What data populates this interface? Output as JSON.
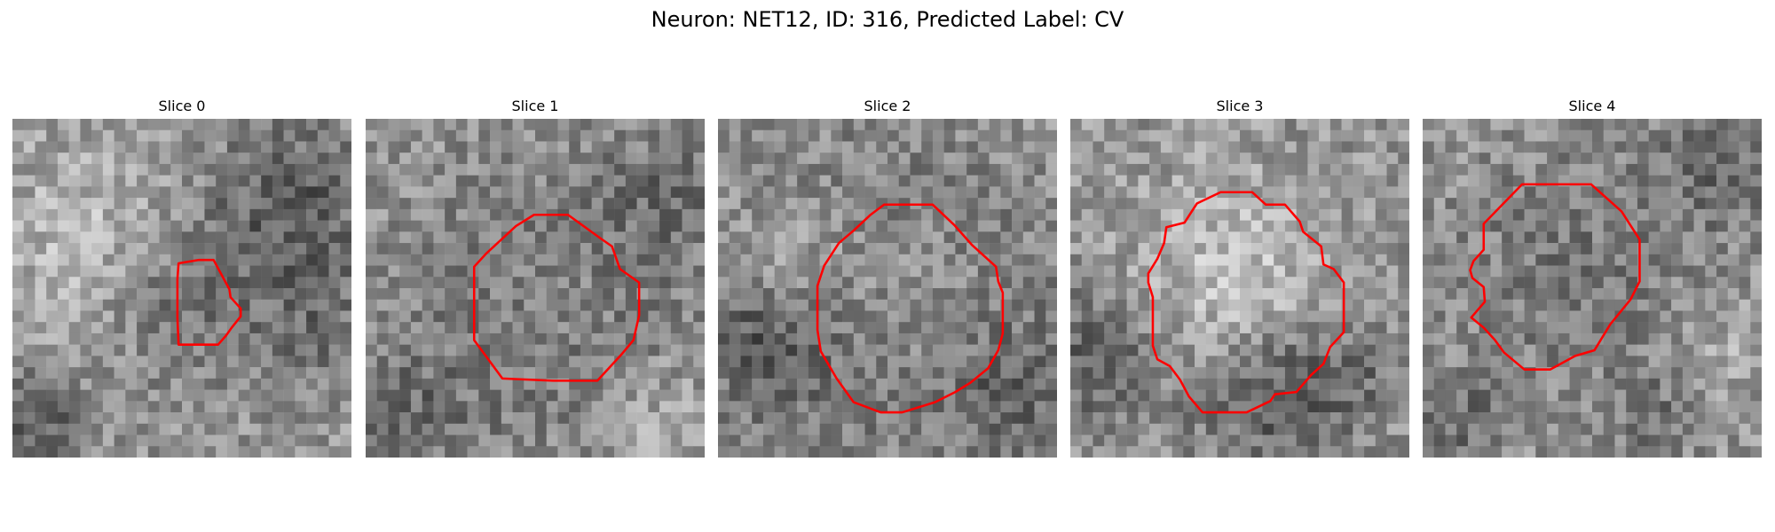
{
  "figure": {
    "title": "Neuron: NET12, ID: 316, Predicted Label: CV",
    "grid_size": 30,
    "contour_color": "#ff0000",
    "panels": [
      {
        "title": "Slice 0",
        "seed": 11,
        "blobs": [
          {
            "cx": 15,
            "cy": 16,
            "r": 5,
            "amp": -40
          },
          {
            "cx": 24,
            "cy": 7,
            "r": 5,
            "amp": -60
          },
          {
            "cx": 27,
            "cy": 18,
            "r": 4,
            "amp": -35
          },
          {
            "cx": 6,
            "cy": 10,
            "r": 6,
            "amp": 35
          },
          {
            "cx": 2,
            "cy": 26,
            "r": 3,
            "amp": -60
          }
        ],
        "contour": [
          [
            14.7,
            12.8
          ],
          [
            16.5,
            12.5
          ],
          [
            17.8,
            12.5
          ],
          [
            19.2,
            15.1
          ],
          [
            19.3,
            15.8
          ],
          [
            20.2,
            16.8
          ],
          [
            20.2,
            17.5
          ],
          [
            19.4,
            18.5
          ],
          [
            18.9,
            19.2
          ],
          [
            18.2,
            20.0
          ],
          [
            14.7,
            20.0
          ],
          [
            14.6,
            17.6
          ],
          [
            14.6,
            14.2
          ]
        ]
      },
      {
        "title": "Slice 1",
        "seed": 23,
        "blobs": [
          {
            "cx": 16,
            "cy": 16,
            "r": 9,
            "amp": -45
          },
          {
            "cx": 16,
            "cy": 15,
            "r": 5,
            "amp": 25
          },
          {
            "cx": 26,
            "cy": 6,
            "r": 4,
            "amp": -30
          },
          {
            "cx": 3,
            "cy": 26,
            "r": 4,
            "amp": -35
          },
          {
            "cx": 25,
            "cy": 26,
            "r": 4,
            "amp": 30
          }
        ],
        "contour": [
          [
            14.9,
            8.5
          ],
          [
            17.9,
            8.5
          ],
          [
            20.8,
            10.6
          ],
          [
            21.8,
            11.3
          ],
          [
            22.5,
            13.3
          ],
          [
            24.2,
            14.5
          ],
          [
            24.2,
            17.4
          ],
          [
            23.7,
            19.6
          ],
          [
            22.7,
            20.8
          ],
          [
            20.5,
            23.2
          ],
          [
            16.6,
            23.2
          ],
          [
            12.1,
            23.0
          ],
          [
            10.7,
            21.1
          ],
          [
            9.6,
            19.6
          ],
          [
            9.6,
            13.1
          ],
          [
            10.7,
            11.9
          ],
          [
            13.3,
            9.5
          ]
        ]
      },
      {
        "title": "Slice 2",
        "seed": 37,
        "blobs": [
          {
            "cx": 16,
            "cy": 16,
            "r": 10,
            "amp": -55
          },
          {
            "cx": 17,
            "cy": 15,
            "r": 6,
            "amp": 45
          },
          {
            "cx": 3,
            "cy": 19,
            "r": 4,
            "amp": -50
          },
          {
            "cx": 6,
            "cy": 13,
            "r": 4,
            "amp": 35
          },
          {
            "cx": 26,
            "cy": 24,
            "r": 4,
            "amp": -35
          }
        ],
        "contour": [
          [
            13.5,
            8.5
          ],
          [
            14.7,
            7.6
          ],
          [
            16.6,
            7.6
          ],
          [
            19.0,
            7.6
          ],
          [
            20.9,
            9.4
          ],
          [
            22.5,
            11.2
          ],
          [
            24.6,
            13.1
          ],
          [
            24.8,
            14.4
          ],
          [
            25.2,
            15.4
          ],
          [
            25.2,
            19.0
          ],
          [
            24.8,
            20.5
          ],
          [
            23.9,
            22.1
          ],
          [
            22.3,
            23.4
          ],
          [
            21.0,
            24.2
          ],
          [
            19.2,
            25.1
          ],
          [
            16.3,
            26.0
          ],
          [
            14.4,
            26.0
          ],
          [
            12.0,
            25.1
          ],
          [
            10.5,
            23.0
          ],
          [
            9.1,
            20.6
          ],
          [
            8.8,
            18.7
          ],
          [
            8.8,
            14.8
          ],
          [
            9.4,
            13.0
          ],
          [
            10.7,
            11.0
          ],
          [
            12.0,
            9.9
          ]
        ]
      },
      {
        "title": "Slice 3",
        "seed": 41,
        "blobs": [
          {
            "cx": 15,
            "cy": 16,
            "r": 9,
            "amp": -40
          },
          {
            "cx": 14,
            "cy": 14,
            "r": 7,
            "amp": 80
          },
          {
            "cx": 2,
            "cy": 21,
            "r": 4,
            "amp": -55
          },
          {
            "cx": 17,
            "cy": 24,
            "r": 4,
            "amp": -55
          },
          {
            "cx": 24,
            "cy": 22,
            "r": 3,
            "amp": -35
          }
        ],
        "contour": [
          [
            11.2,
            7.5
          ],
          [
            13.3,
            6.5
          ],
          [
            16.1,
            6.5
          ],
          [
            17.3,
            7.6
          ],
          [
            19.0,
            7.6
          ],
          [
            20.3,
            9.1
          ],
          [
            20.6,
            10.0
          ],
          [
            22.2,
            11.3
          ],
          [
            22.4,
            12.9
          ],
          [
            23.3,
            13.3
          ],
          [
            24.2,
            14.5
          ],
          [
            24.2,
            18.9
          ],
          [
            23.0,
            20.2
          ],
          [
            22.4,
            21.7
          ],
          [
            21.3,
            22.7
          ],
          [
            20.0,
            24.2
          ],
          [
            18.1,
            24.4
          ],
          [
            17.7,
            25.0
          ],
          [
            15.6,
            26.0
          ],
          [
            11.7,
            26.0
          ],
          [
            10.5,
            24.6
          ],
          [
            9.7,
            23.1
          ],
          [
            8.8,
            21.9
          ],
          [
            7.7,
            21.3
          ],
          [
            7.3,
            20.1
          ],
          [
            7.3,
            15.8
          ],
          [
            6.9,
            14.5
          ],
          [
            6.9,
            13.7
          ],
          [
            7.7,
            12.4
          ],
          [
            8.3,
            11.0
          ],
          [
            8.5,
            9.6
          ],
          [
            10.1,
            9.2
          ]
        ]
      },
      {
        "title": "Slice 4",
        "seed": 57,
        "blobs": [
          {
            "cx": 13,
            "cy": 13,
            "r": 8,
            "amp": -30
          },
          {
            "cx": 26,
            "cy": 4,
            "r": 4,
            "amp": -40
          },
          {
            "cx": 3,
            "cy": 26,
            "r": 3,
            "amp": -40
          },
          {
            "cx": 26,
            "cy": 20,
            "r": 3,
            "amp": 25
          },
          {
            "cx": 20,
            "cy": 26,
            "r": 3,
            "amp": -30
          }
        ],
        "contour": [
          [
            8.8,
            5.8
          ],
          [
            11.1,
            5.8
          ],
          [
            14.9,
            5.8
          ],
          [
            17.6,
            8.2
          ],
          [
            19.2,
            10.7
          ],
          [
            19.2,
            14.4
          ],
          [
            18.4,
            16.0
          ],
          [
            16.6,
            18.2
          ],
          [
            15.2,
            20.5
          ],
          [
            13.5,
            21.0
          ],
          [
            11.3,
            22.2
          ],
          [
            9.0,
            22.2
          ],
          [
            7.2,
            20.7
          ],
          [
            6.4,
            19.6
          ],
          [
            5.4,
            18.5
          ],
          [
            4.3,
            17.6
          ],
          [
            5.5,
            16.2
          ],
          [
            5.4,
            14.9
          ],
          [
            4.4,
            14.1
          ],
          [
            4.2,
            13.4
          ],
          [
            4.5,
            12.6
          ],
          [
            5.4,
            11.6
          ],
          [
            5.4,
            9.3
          ]
        ]
      }
    ]
  }
}
